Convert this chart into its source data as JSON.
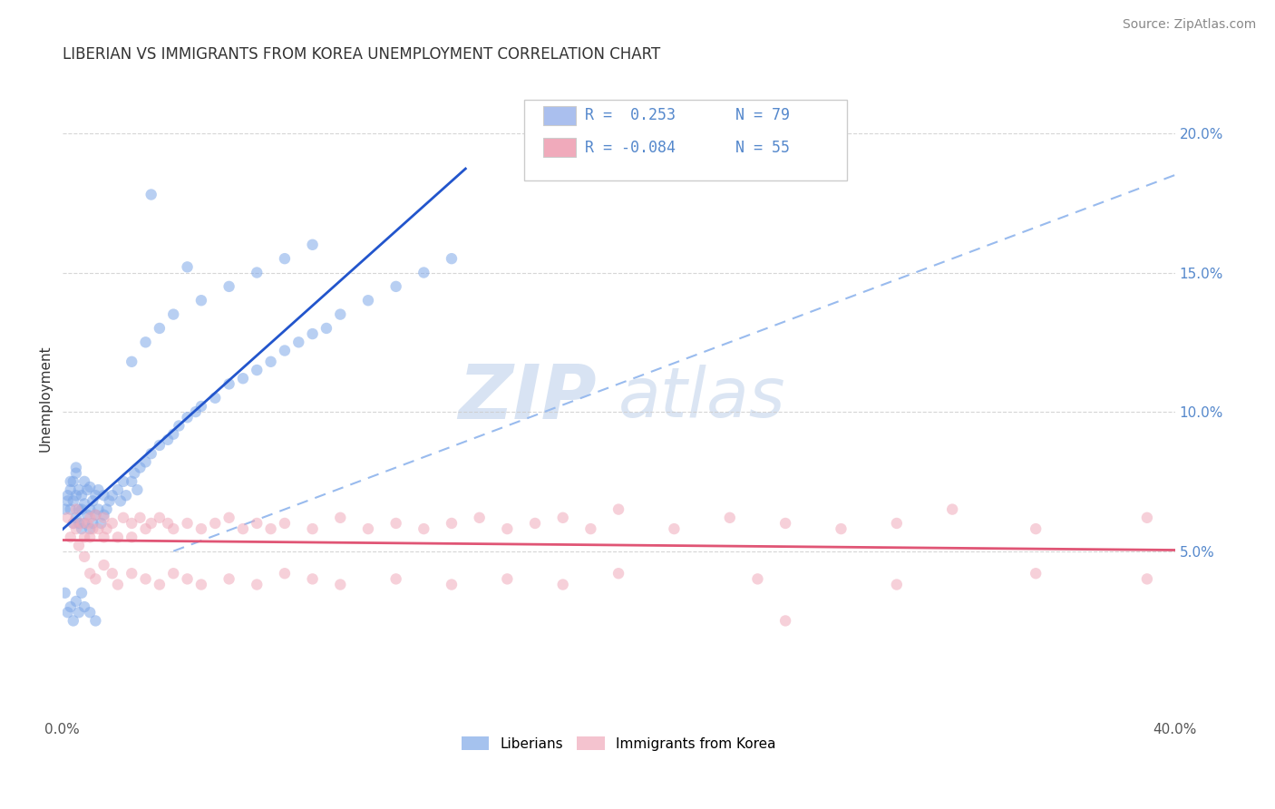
{
  "title": "LIBERIAN VS IMMIGRANTS FROM KOREA UNEMPLOYMENT CORRELATION CHART",
  "source": "Source: ZipAtlas.com",
  "ylabel": "Unemployment",
  "xlim": [
    0.0,
    0.4
  ],
  "ylim": [
    -0.01,
    0.22
  ],
  "yticks": [
    0.05,
    0.1,
    0.15,
    0.2
  ],
  "ytick_labels": [
    "5.0%",
    "10.0%",
    "15.0%",
    "20.0%"
  ],
  "xticks": [
    0.0,
    0.05,
    0.1,
    0.15,
    0.2,
    0.25,
    0.3,
    0.35,
    0.4
  ],
  "xtick_labels": [
    "0.0%",
    "",
    "",
    "",
    "",
    "",
    "",
    "",
    "40.0%"
  ],
  "watermark_zip": "ZIP",
  "watermark_atlas": "atlas",
  "legend_entries": [
    {
      "label_r": "R =  0.253",
      "label_n": "N = 79",
      "color": "#aabfee"
    },
    {
      "label_r": "R = -0.084",
      "label_n": "N = 55",
      "color": "#f0aabb"
    }
  ],
  "liberian_color": "#7fa8e8",
  "korea_color": "#f0aabb",
  "liberian_line_color": "#2255cc",
  "korea_line_color": "#e05575",
  "dash_line_color": "#99bbee",
  "background_color": "#ffffff",
  "grid_color": "#cccccc",
  "title_fontsize": 12,
  "source_fontsize": 10,
  "axis_label_fontsize": 11,
  "tick_fontsize": 11,
  "right_tick_color": "#5588cc"
}
